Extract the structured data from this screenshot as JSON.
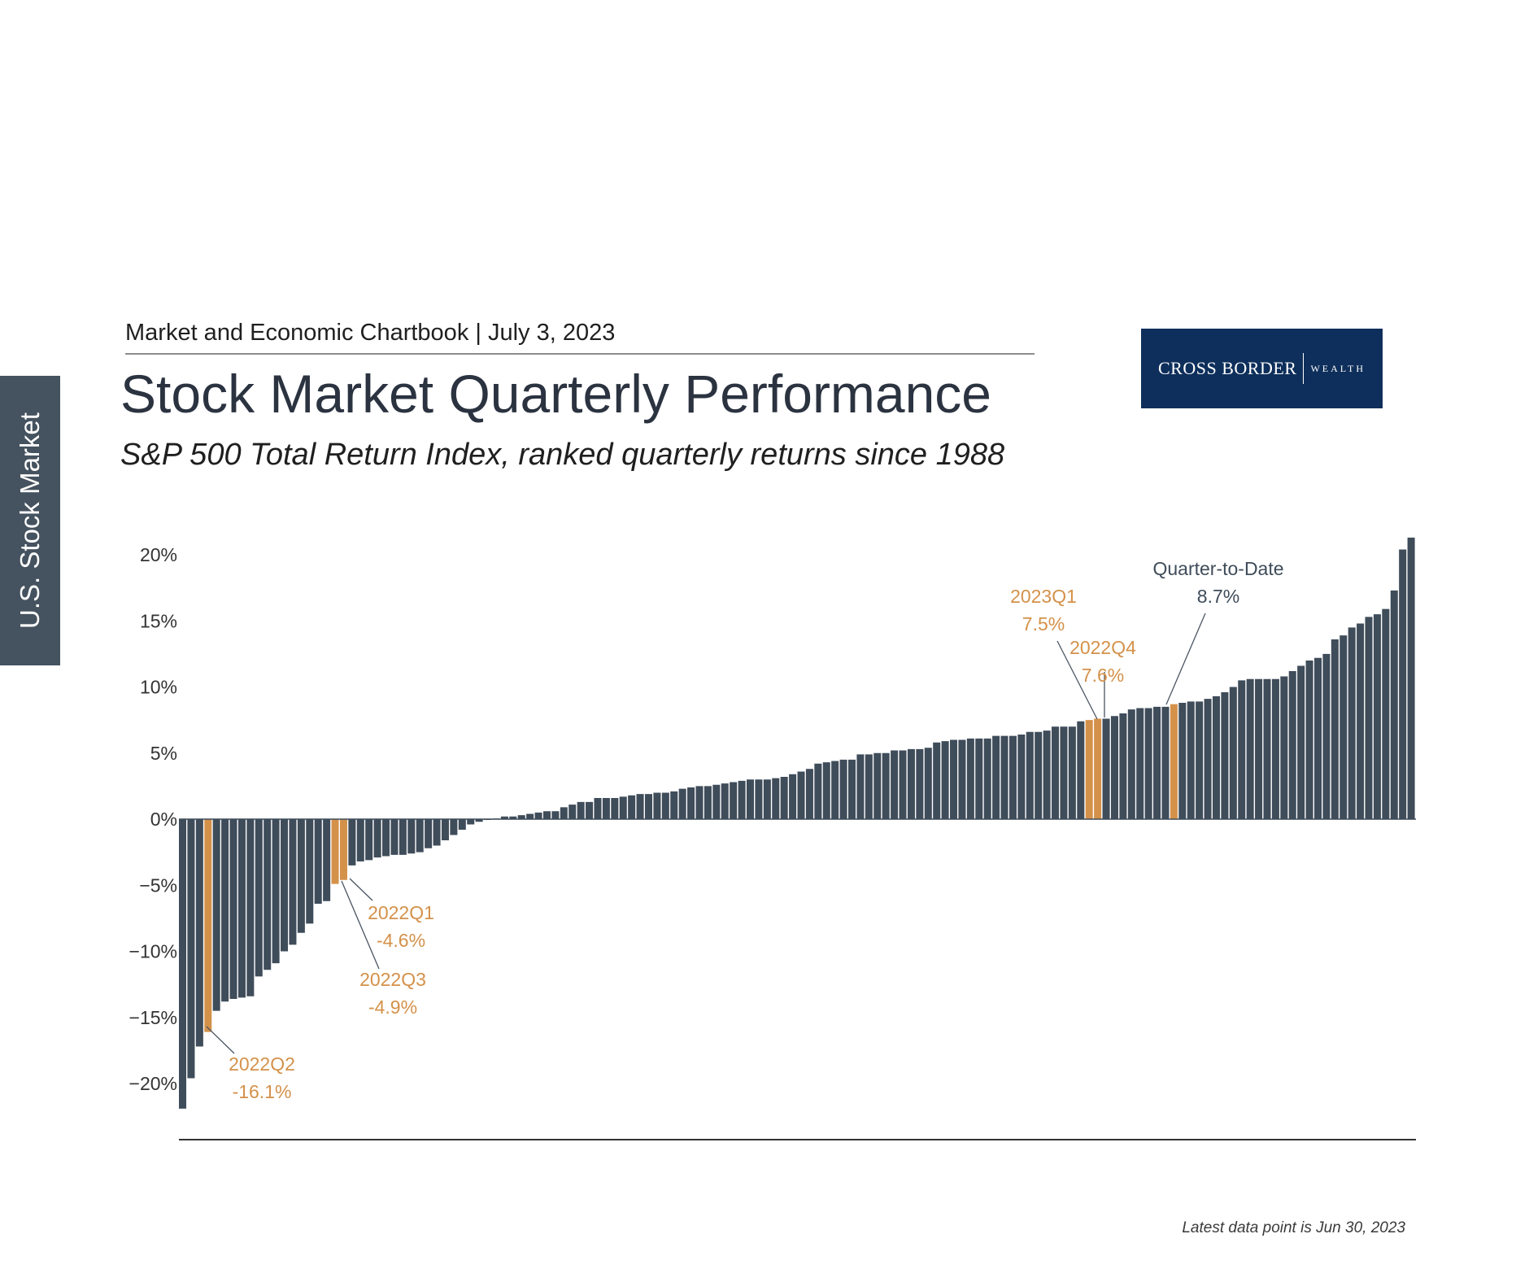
{
  "side_tab": {
    "label": "U.S. Stock Market"
  },
  "header": {
    "chartbook": "Market and Economic Chartbook | July 3, 2023",
    "title": "Stock Market Quarterly Performance",
    "subtitle": "S&P 500 Total Return Index, ranked quarterly returns since 1988"
  },
  "logo": {
    "primary": "CROSS BORDER",
    "secondary": "WEALTH"
  },
  "footnote": "Latest data point is Jun 30, 2023",
  "colors": {
    "bar": "#3f4c5a",
    "highlight": "#d4914a",
    "axis": "#333333",
    "annotation_dark": "#3f4c5a"
  },
  "chart_data": {
    "type": "bar",
    "sorted": "ascending",
    "ylim": [
      -22.5,
      21.5
    ],
    "yticks": [
      {
        "value": 20,
        "label": "20%"
      },
      {
        "value": 15,
        "label": "15%"
      },
      {
        "value": 10,
        "label": "10%"
      },
      {
        "value": 5,
        "label": "5%"
      },
      {
        "value": 0,
        "label": "0%"
      },
      {
        "value": -5,
        "label": "−5%"
      },
      {
        "value": -10,
        "label": "−10%"
      },
      {
        "value": -15,
        "label": "−15%"
      },
      {
        "value": -20,
        "label": "−20%"
      }
    ],
    "values": [
      -21.9,
      -19.6,
      -17.2,
      -16.1,
      -14.5,
      -13.8,
      -13.6,
      -13.5,
      -13.4,
      -11.9,
      -11.4,
      -10.9,
      -10.0,
      -9.5,
      -8.6,
      -7.9,
      -6.4,
      -6.2,
      -4.9,
      -4.6,
      -3.5,
      -3.2,
      -3.1,
      -2.9,
      -2.8,
      -2.7,
      -2.7,
      -2.6,
      -2.5,
      -2.2,
      -2.0,
      -1.6,
      -1.2,
      -0.8,
      -0.4,
      -0.2,
      -0.05,
      0.05,
      0.2,
      0.2,
      0.3,
      0.4,
      0.5,
      0.6,
      0.6,
      0.9,
      1.1,
      1.3,
      1.3,
      1.6,
      1.6,
      1.6,
      1.7,
      1.8,
      1.9,
      1.9,
      2.0,
      2.0,
      2.1,
      2.3,
      2.4,
      2.5,
      2.5,
      2.6,
      2.7,
      2.8,
      2.9,
      3.0,
      3.0,
      3.0,
      3.1,
      3.2,
      3.4,
      3.6,
      3.8,
      4.2,
      4.3,
      4.4,
      4.5,
      4.5,
      4.9,
      4.9,
      5.0,
      5.0,
      5.2,
      5.2,
      5.3,
      5.3,
      5.4,
      5.8,
      5.9,
      6.0,
      6.0,
      6.1,
      6.1,
      6.1,
      6.3,
      6.3,
      6.3,
      6.4,
      6.6,
      6.6,
      6.7,
      7.0,
      7.0,
      7.0,
      7.4,
      7.5,
      7.6,
      7.6,
      7.8,
      8.0,
      8.3,
      8.4,
      8.4,
      8.5,
      8.5,
      8.7,
      8.8,
      8.9,
      8.9,
      9.1,
      9.3,
      9.6,
      10.0,
      10.5,
      10.6,
      10.6,
      10.6,
      10.6,
      10.8,
      11.2,
      11.6,
      12.0,
      12.2,
      12.5,
      13.6,
      13.9,
      14.5,
      14.8,
      15.3,
      15.5,
      15.9,
      17.3,
      20.4,
      21.3
    ],
    "highlights": [
      3,
      18,
      19,
      107,
      108,
      117
    ],
    "annotations": [
      {
        "label": "2022Q2",
        "value_label": "-16.1%",
        "bar": 3,
        "color": "highlight"
      },
      {
        "label": "2022Q1",
        "value_label": "-4.6%",
        "bar": 19,
        "color": "highlight"
      },
      {
        "label": "2022Q3",
        "value_label": "-4.9%",
        "bar": 18,
        "color": "highlight"
      },
      {
        "label": "2023Q1",
        "value_label": "7.5%",
        "bar": 107,
        "color": "highlight"
      },
      {
        "label": "2022Q4",
        "value_label": "7.6%",
        "bar": 108,
        "color": "highlight"
      },
      {
        "label": "Quarter-to-Date",
        "value_label": "8.7%",
        "bar": 117,
        "color": "annotation_dark"
      }
    ]
  }
}
